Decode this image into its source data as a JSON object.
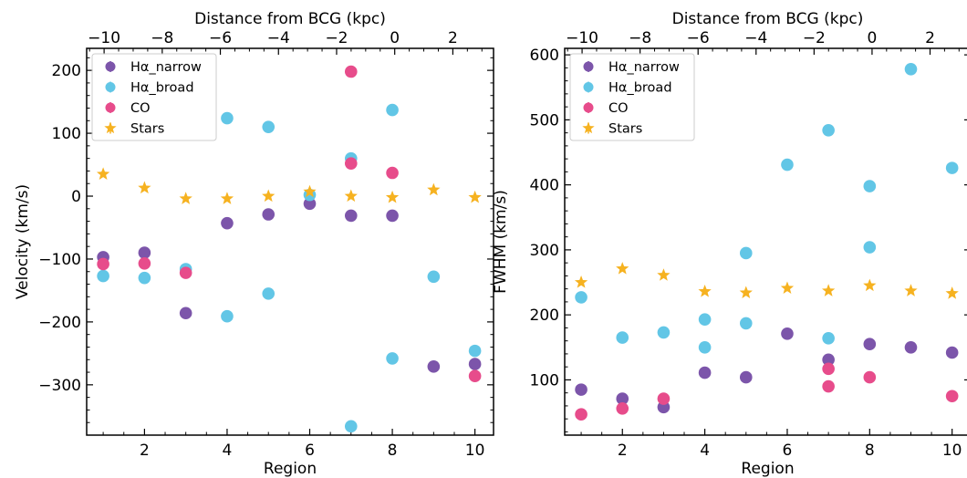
{
  "chart_data": [
    {
      "type": "scatter",
      "xlabel": "Region",
      "ylabel": "Velocity (km/s)",
      "top_xlabel": "Distance from BCG (kpc)",
      "xlim": [
        0.6,
        10.45
      ],
      "ylim": [
        -380,
        235
      ],
      "xticks": [
        2,
        4,
        6,
        8,
        10
      ],
      "yticks": [
        -300,
        -200,
        -100,
        0,
        100,
        200
      ],
      "top_xlim": [
        -10.6,
        3.4
      ],
      "top_xticks": [
        -10,
        -8,
        -6,
        -4,
        -2,
        0,
        2
      ],
      "legend_loc": "upper left",
      "series": [
        {
          "name": "Hα_narrow",
          "marker": "circle",
          "color": "#7c55aa",
          "points": [
            [
              1,
              -97
            ],
            [
              2,
              -90
            ],
            [
              3,
              -186
            ],
            [
              4,
              -43
            ],
            [
              5,
              -29
            ],
            [
              6,
              -12
            ],
            [
              7,
              -31
            ],
            [
              8,
              -31
            ],
            [
              9,
              -271
            ],
            [
              10,
              -267
            ]
          ]
        },
        {
          "name": "Hα_broad",
          "marker": "circle",
          "color": "#62c6e6",
          "points": [
            [
              1,
              -127
            ],
            [
              2,
              -130
            ],
            [
              3,
              -116
            ],
            [
              4,
              124
            ],
            [
              4,
              -191
            ],
            [
              5,
              110
            ],
            [
              5,
              -155
            ],
            [
              6,
              2
            ],
            [
              7,
              60
            ],
            [
              7,
              -366
            ],
            [
              8,
              137
            ],
            [
              8,
              -258
            ],
            [
              9,
              -128
            ],
            [
              10,
              -246
            ]
          ]
        },
        {
          "name": "CO",
          "marker": "circle",
          "color": "#e74c8b",
          "points": [
            [
              1,
              -108
            ],
            [
              2,
              -107
            ],
            [
              3,
              -122
            ],
            [
              7,
              198
            ],
            [
              7,
              52
            ],
            [
              8,
              37
            ],
            [
              10,
              -286
            ]
          ]
        },
        {
          "name": "Stars",
          "marker": "star",
          "color": "#f6b220",
          "points": [
            [
              1,
              35
            ],
            [
              2,
              13
            ],
            [
              3,
              -4
            ],
            [
              4,
              -4
            ],
            [
              5,
              0
            ],
            [
              6,
              7
            ],
            [
              7,
              0
            ],
            [
              8,
              -2
            ],
            [
              9,
              10
            ],
            [
              10,
              -2
            ]
          ]
        }
      ]
    },
    {
      "type": "scatter",
      "xlabel": "Region",
      "ylabel": "FWHM (km/s)",
      "top_xlabel": "Distance from BCG (kpc)",
      "xlim": [
        0.6,
        10.45
      ],
      "ylim": [
        15,
        610
      ],
      "xticks": [
        2,
        4,
        6,
        8,
        10
      ],
      "yticks": [
        100,
        200,
        300,
        400,
        500,
        600
      ],
      "top_xlim": [
        -10.6,
        3.4
      ],
      "top_xticks": [
        -10,
        -8,
        -6,
        -4,
        -2,
        0,
        2
      ],
      "legend_loc": "upper left",
      "series": [
        {
          "name": "Hα_narrow",
          "marker": "circle",
          "color": "#7c55aa",
          "points": [
            [
              1,
              85
            ],
            [
              2,
              71
            ],
            [
              3,
              58
            ],
            [
              4,
              111
            ],
            [
              5,
              104
            ],
            [
              6,
              171
            ],
            [
              7,
              131
            ],
            [
              8,
              155
            ],
            [
              9,
              150
            ],
            [
              10,
              142
            ]
          ]
        },
        {
          "name": "Hα_broad",
          "marker": "circle",
          "color": "#62c6e6",
          "points": [
            [
              1,
              227
            ],
            [
              2,
              165
            ],
            [
              3,
              173
            ],
            [
              4,
              193
            ],
            [
              4,
              150
            ],
            [
              5,
              187
            ],
            [
              5,
              295
            ],
            [
              6,
              431
            ],
            [
              7,
              484
            ],
            [
              7,
              164
            ],
            [
              8,
              398
            ],
            [
              8,
              304
            ],
            [
              9,
              578
            ],
            [
              10,
              426
            ]
          ]
        },
        {
          "name": "CO",
          "marker": "circle",
          "color": "#e74c8b",
          "points": [
            [
              1,
              47
            ],
            [
              2,
              56
            ],
            [
              3,
              71
            ],
            [
              7,
              117
            ],
            [
              7,
              90
            ],
            [
              8,
              104
            ],
            [
              10,
              75
            ]
          ]
        },
        {
          "name": "Stars",
          "marker": "star",
          "color": "#f6b220",
          "points": [
            [
              1,
              250
            ],
            [
              2,
              271
            ],
            [
              3,
              261
            ],
            [
              4,
              236
            ],
            [
              5,
              234
            ],
            [
              6,
              241
            ],
            [
              7,
              237
            ],
            [
              8,
              245
            ],
            [
              9,
              237
            ],
            [
              10,
              233
            ]
          ]
        }
      ]
    }
  ]
}
